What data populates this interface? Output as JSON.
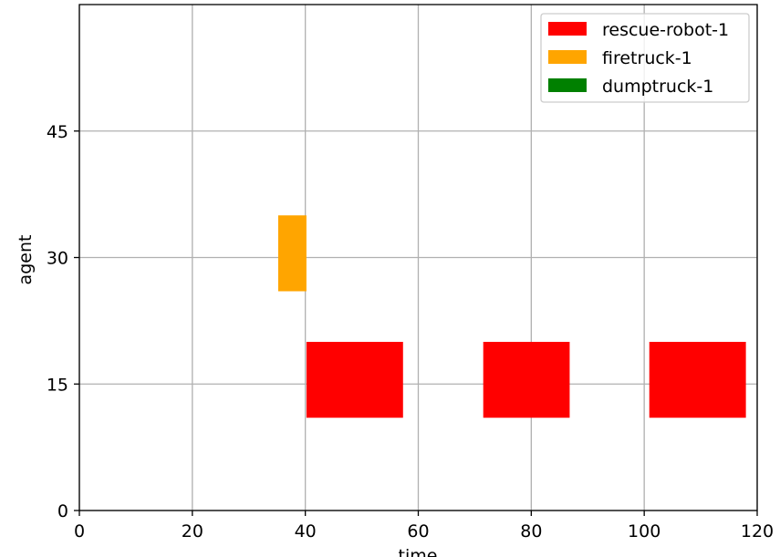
{
  "chart_data": {
    "type": "bar",
    "orientation": "horizontal-gantt",
    "title": "",
    "xlabel": "time",
    "ylabel": "agent",
    "xlim": [
      0,
      120
    ],
    "ylim": [
      0,
      60
    ],
    "xticks": [
      0,
      20,
      40,
      60,
      80,
      100,
      120
    ],
    "yticks": [
      0,
      15,
      30,
      45
    ],
    "grid": true,
    "legend": "top-right",
    "series": [
      {
        "name": "rescue-robot-1",
        "color": "#ff0000",
        "bars": [
          {
            "start": 40.2,
            "end": 57.3,
            "y0": 11,
            "y1": 20
          },
          {
            "start": 71.5,
            "end": 86.8,
            "y0": 11,
            "y1": 20
          },
          {
            "start": 100.9,
            "end": 118.0,
            "y0": 11,
            "y1": 20
          }
        ]
      },
      {
        "name": "firetruck-1",
        "color": "#ffa500",
        "bars": [
          {
            "start": 35.2,
            "end": 40.2,
            "y0": 26,
            "y1": 35
          }
        ]
      },
      {
        "name": "dumptruck-1",
        "color": "#008000",
        "bars": []
      }
    ]
  }
}
